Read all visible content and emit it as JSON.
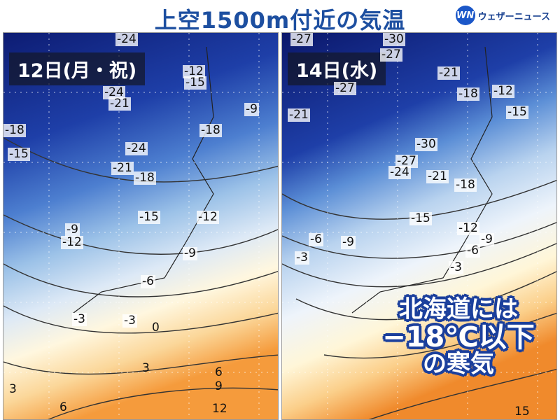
{
  "title": "上空1500m付近の気温",
  "brand": {
    "mark": "WN",
    "name": "ウェザーニュース"
  },
  "callout": {
    "line1": "北海道には",
    "line2": "−18℃以下",
    "line3": "の寒気"
  },
  "panels": [
    {
      "date": "12日(月・祝)",
      "labels": [
        "-24",
        "-12",
        "-15",
        "-24",
        "-21",
        "-9",
        "-18",
        "-18",
        "-15",
        "-24",
        "-21",
        "-18",
        "-15",
        "-12",
        "-9",
        "-12",
        "-9",
        "-6",
        "-3",
        "-3",
        "0",
        "3",
        "6",
        "9",
        "6",
        "12",
        "3"
      ]
    },
    {
      "date": "14日(水)",
      "labels": [
        "-27",
        "-30",
        "-27",
        "-21",
        "-27",
        "-21",
        "-18",
        "-12",
        "-15",
        "-30",
        "-27",
        "-24",
        "-21",
        "-18",
        "-15",
        "-12",
        "-9",
        "-6",
        "-9",
        "-6",
        "-3",
        "-3",
        "15"
      ]
    }
  ]
}
